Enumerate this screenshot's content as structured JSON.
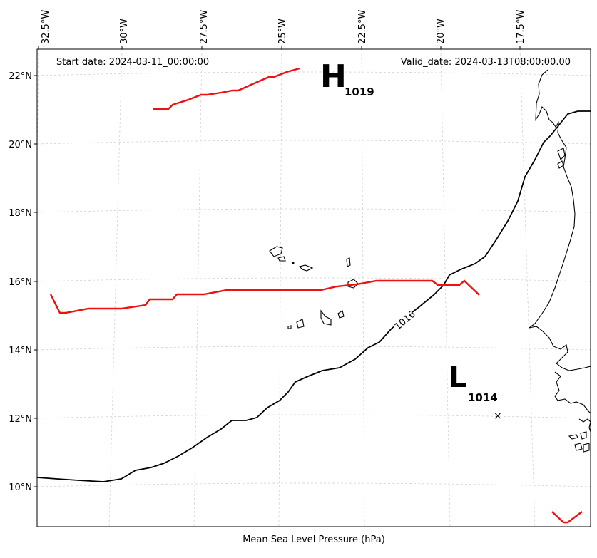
{
  "header": {
    "start_date": "Start date: 2024-03-11_00:00:00",
    "valid_date": "Valid_date: 2024-03-13T08:00:00.00"
  },
  "footer": {
    "caption": "Mean Sea Level Pressure (hPa)"
  },
  "axes": {
    "lon_ticks": [
      "32.5°W",
      "30°W",
      "27.5°W",
      "25°W",
      "22.5°W",
      "20°W",
      "17.5°W"
    ],
    "lat_ticks": [
      "22°N",
      "20°N",
      "18°N",
      "16°N",
      "14°N",
      "12°N",
      "10°N"
    ],
    "grid": true
  },
  "pressure_centers": {
    "high": {
      "symbol": "H",
      "value": "1019"
    },
    "low": {
      "symbol": "L",
      "value": "1014",
      "marker": "×"
    }
  },
  "isobars": {
    "label_1016": "1016"
  },
  "colors": {
    "isobar": "#000000",
    "highlight_isobar": "#ee1111",
    "coast": "#000000",
    "grid": "#cccccc"
  }
}
